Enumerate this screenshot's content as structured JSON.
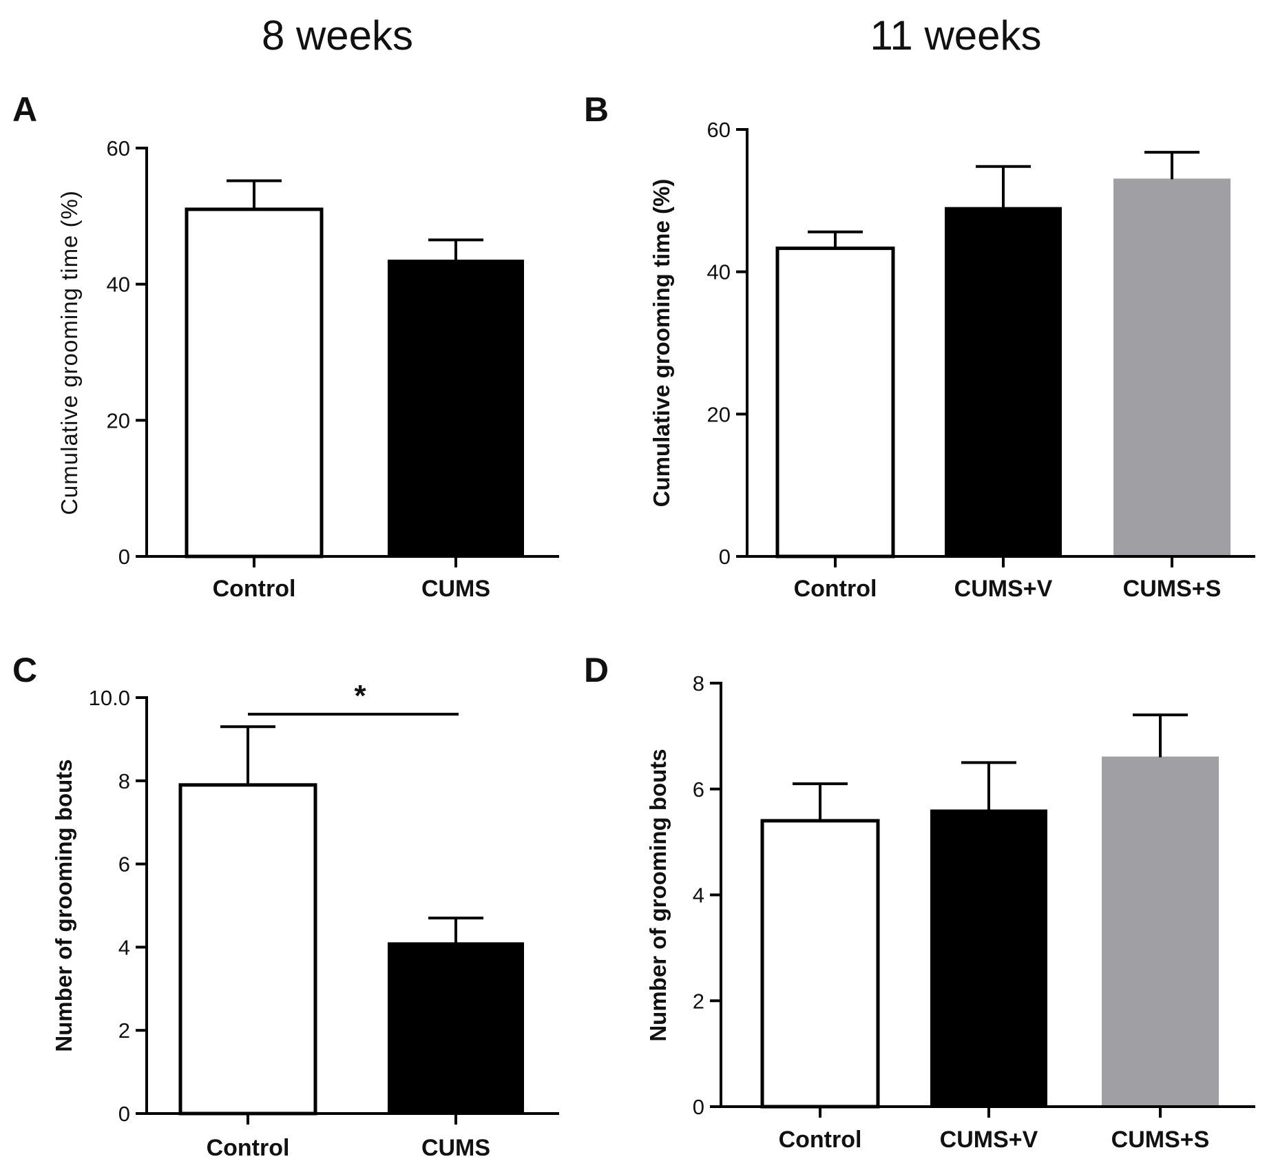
{
  "figure": {
    "column_titles": [
      "8 weeks",
      "11 weeks"
    ]
  },
  "chart_data": [
    {
      "panel": "A",
      "type": "bar",
      "ylabel": "Cumulative  grooming time (%)",
      "ylim": [
        0,
        60
      ],
      "yticks": [
        0,
        20,
        40,
        60
      ],
      "categories": [
        "Control",
        "CUMS"
      ],
      "series": [
        {
          "values": [
            51,
            43.5
          ],
          "errors": [
            4.2,
            3
          ]
        }
      ],
      "colors": [
        "#ffffff",
        "#000000"
      ],
      "grid": false
    },
    {
      "panel": "B",
      "type": "bar",
      "ylabel": "Cumulative  grooming time (%)",
      "ylim": [
        0,
        60
      ],
      "yticks": [
        0,
        20,
        40,
        60
      ],
      "categories": [
        "Control",
        "CUMS+V",
        "CUMS+S"
      ],
      "series": [
        {
          "values": [
            43.3,
            49,
            53
          ],
          "errors": [
            2.3,
            5.8,
            3.8
          ]
        }
      ],
      "colors": [
        "#ffffff",
        "#000000",
        "#a0a0a4"
      ],
      "grid": false
    },
    {
      "panel": "C",
      "type": "bar",
      "ylabel": "Number of grooming bouts",
      "ylim": [
        0,
        10
      ],
      "yticks": [
        0,
        2,
        4,
        6,
        8,
        10
      ],
      "ytick_labels": [
        "0",
        "2",
        "4",
        "6",
        "8",
        "10.0"
      ],
      "categories": [
        "Control",
        "CUMS"
      ],
      "series": [
        {
          "values": [
            7.9,
            4.1
          ],
          "errors": [
            1.4,
            0.6
          ]
        }
      ],
      "colors": [
        "#ffffff",
        "#000000"
      ],
      "significance": {
        "from": 0,
        "to": 1,
        "y": 9.6,
        "label": "*"
      },
      "grid": false
    },
    {
      "panel": "D",
      "type": "bar",
      "ylabel": "Number of grooming bouts",
      "ylim": [
        0,
        8
      ],
      "yticks": [
        0,
        2,
        4,
        6,
        8
      ],
      "categories": [
        "Control",
        "CUMS+V",
        "CUMS+S"
      ],
      "series": [
        {
          "values": [
            5.4,
            5.6,
            6.6
          ],
          "errors": [
            0.7,
            0.9,
            0.8
          ]
        }
      ],
      "colors": [
        "#ffffff",
        "#000000",
        "#a0a0a4"
      ],
      "grid": false
    }
  ]
}
